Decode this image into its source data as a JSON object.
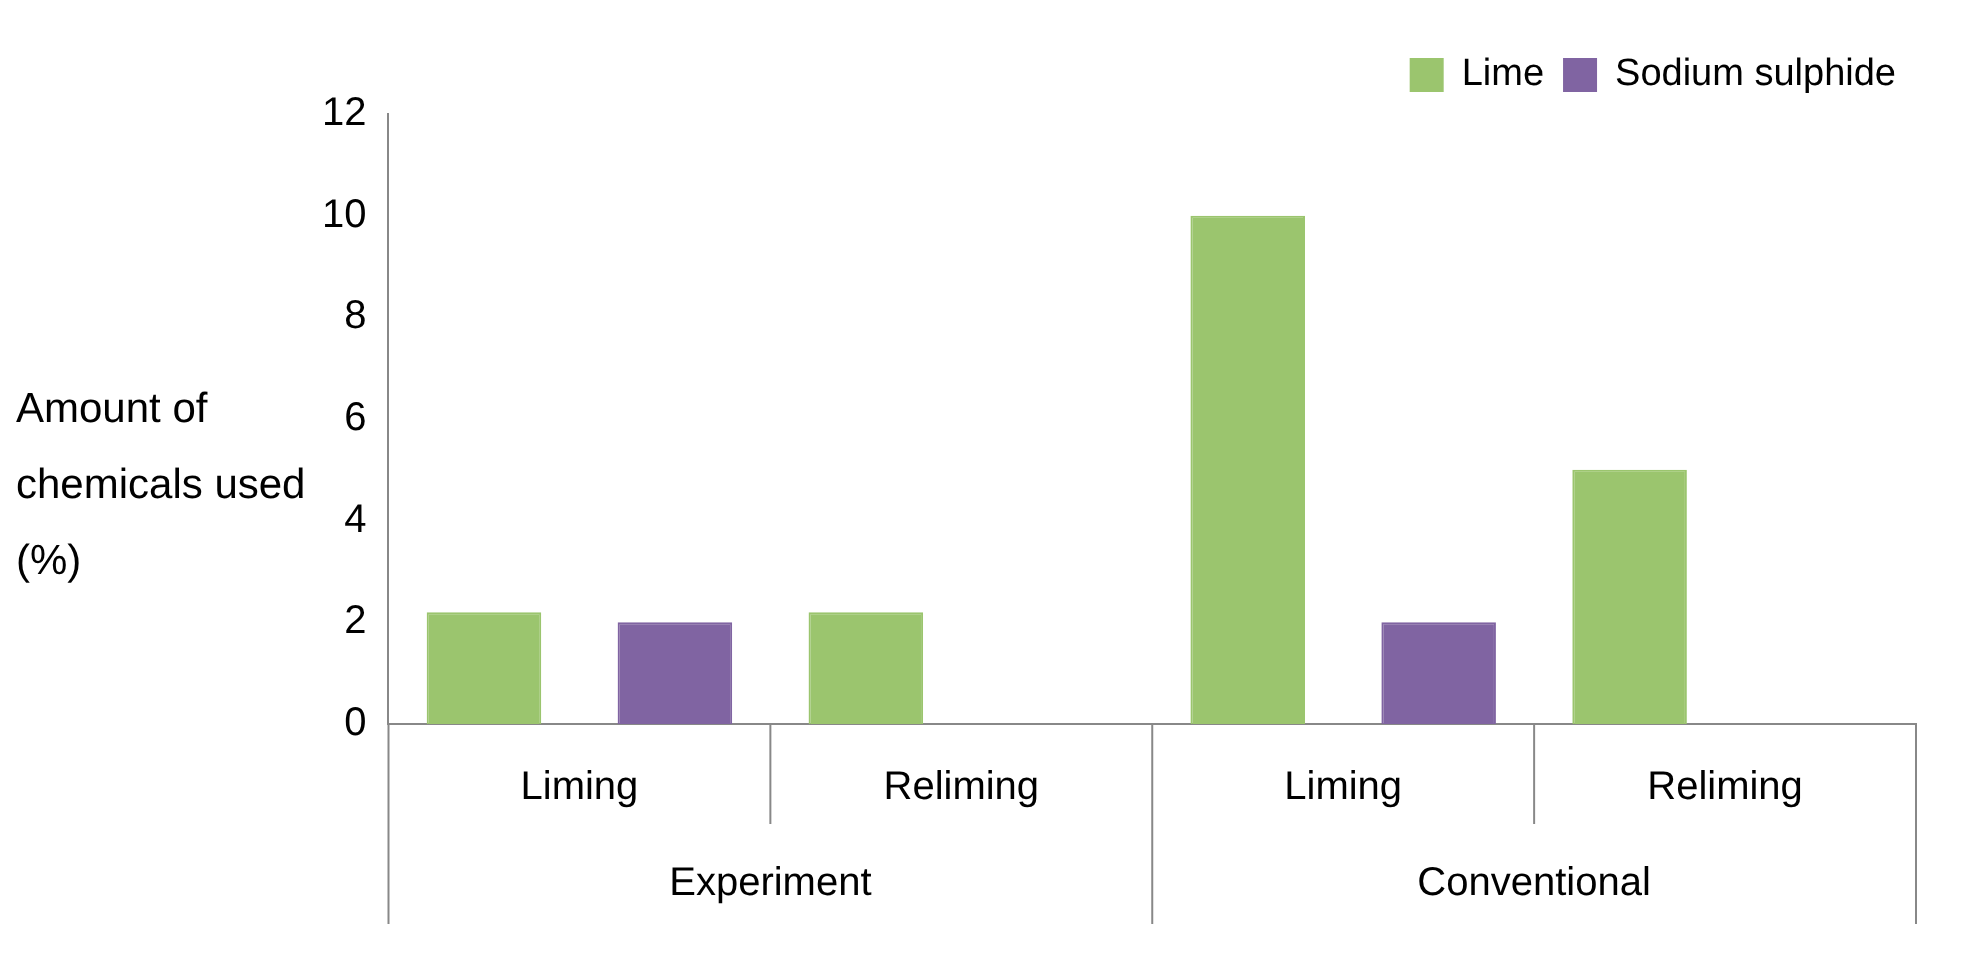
{
  "chart_data": {
    "type": "bar",
    "ylabel": "Amount of chemicals used (%)",
    "categories": [
      "Liming",
      "Reliming",
      "Liming",
      "Reliming"
    ],
    "series": [
      {
        "name": "Lime",
        "color": "#9bc56e",
        "values": [
          2.2,
          2.2,
          10,
          5
        ]
      },
      {
        "name": "Sodium sulphide",
        "color": "#8064a2",
        "values": [
          2,
          null,
          2,
          null
        ]
      }
    ],
    "ylim": [
      0,
      12
    ],
    "yticks": [
      0,
      2,
      4,
      6,
      8,
      10,
      12
    ],
    "grid": false,
    "legend": "top right",
    "annotations": [
      "Experiment",
      "Conventional"
    ]
  }
}
